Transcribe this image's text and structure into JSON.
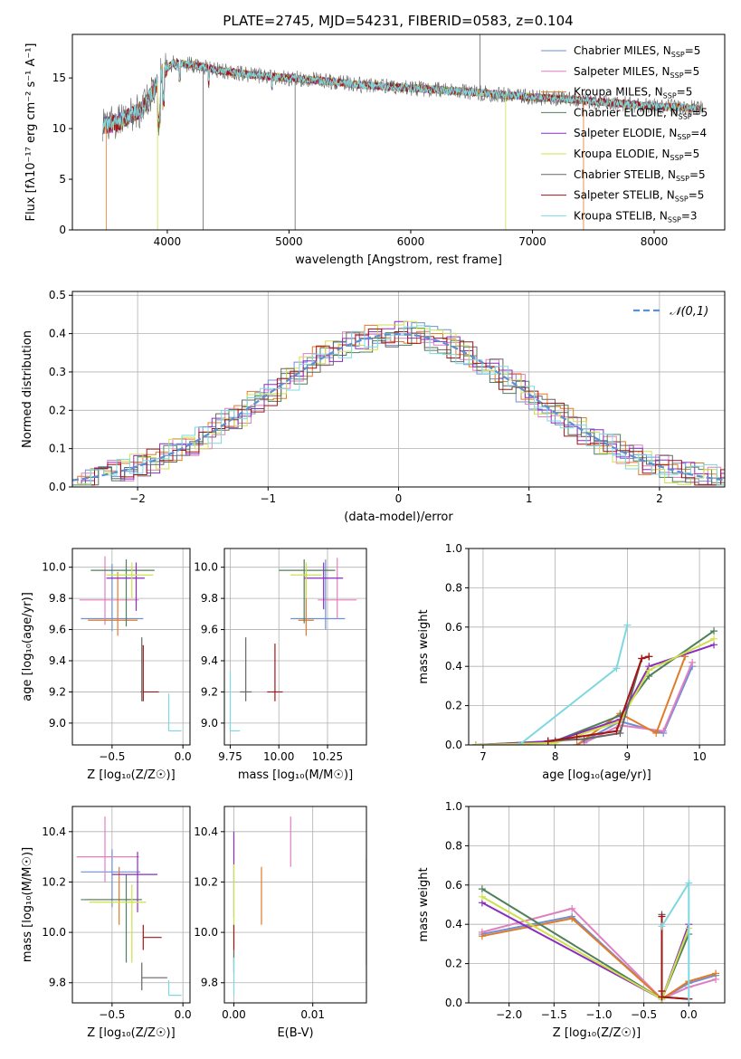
{
  "figure_title": "PLATE=2745, MJD=54231, FIBERID=0583, z=0.104",
  "colors": {
    "Chabrier MILES": "#6f8fd6",
    "Salpeter MILES": "#e07fbf",
    "Kroupa MILES": "#e07b28",
    "Chabrier ELODIE": "#4f7f5a",
    "Salpeter ELODIE": "#8a2cc0",
    "Kroupa ELODIE": "#cfe04a",
    "Chabrier STELIB": "#666666",
    "Salpeter STELIB": "#a31515",
    "Kroupa STELIB": "#7dd8e0"
  },
  "chart_data": [
    {
      "id": "spectrum",
      "type": "line",
      "xlabel": "wavelength [Angstrom, rest frame]",
      "ylabel": "Flux [fλ10⁻¹⁷ erg cm⁻² s⁻¹ A⁻¹]",
      "xlim": [
        3220,
        8580
      ],
      "ylim": [
        0,
        19.3
      ],
      "xticks": [
        4000,
        5000,
        6000,
        7000,
        8000
      ],
      "yticks": [
        0,
        5,
        10,
        15
      ],
      "grid": false,
      "legend": [
        "Chabrier MILES, N_SSP=5",
        "Salpeter MILES, N_SSP=5",
        "Kroupa MILES, N_SSP=5",
        "Chabrier ELODIE, N_SSP=5",
        "Salpeter ELODIE, N_SSP=4",
        "Kroupa ELODIE, N_SSP=5",
        "Chabrier STELIB, N_SSP=5",
        "Salpeter STELIB, N_SSP=5",
        "Kroupa STELIB, N_SSP=3"
      ],
      "legend_position": "top-right",
      "continuum": {
        "x": [
          3470,
          3600,
          3800,
          3900,
          3960,
          4050,
          4200,
          4400,
          4700,
          5000,
          5300,
          5600,
          6000,
          6400,
          6700,
          7000,
          7300,
          7600,
          8000,
          8400
        ],
        "y": [
          10.3,
          10.6,
          12.0,
          14.0,
          15.6,
          16.5,
          16.3,
          15.8,
          15.3,
          15.0,
          14.7,
          14.3,
          14.0,
          13.7,
          13.4,
          13.1,
          12.9,
          12.6,
          12.2,
          12.0
        ]
      }
    },
    {
      "id": "residuals",
      "type": "line",
      "xlabel": "(data-model)/error",
      "ylabel": "Normed distribution",
      "xlim": [
        -2.5,
        2.5
      ],
      "ylim": [
        0,
        0.51
      ],
      "xticks": [
        -2,
        -1,
        0,
        1,
        2
      ],
      "yticks": [
        0.0,
        0.1,
        0.2,
        0.3,
        0.4,
        0.5
      ],
      "grid": true,
      "legend": [
        "𝒩(0,1)"
      ],
      "legend_position": "top-right"
    },
    {
      "id": "age-vs-Z",
      "type": "scatter",
      "xlabel": "Z [log₁₀(Z/Z☉)]",
      "ylabel": "age  [log₁₀(age/yr)]",
      "xlim": [
        -0.78,
        0.05
      ],
      "ylim": [
        8.86,
        10.12
      ],
      "xticks": [
        -0.5,
        0.0
      ],
      "xtick_labels": [
        "−0.5",
        "0.0"
      ],
      "yticks": [
        9.0,
        9.2,
        9.4,
        9.6,
        9.8,
        10.0
      ],
      "grid": true,
      "series": [
        {
          "color": "#6f8fd6",
          "x": -0.5,
          "xerr": [
            0.22,
            0.22
          ],
          "y": 9.67,
          "yerr": [
            0.08,
            0.35
          ]
        },
        {
          "color": "#e07fbf",
          "x": -0.55,
          "xerr": [
            0.18,
            0.24
          ],
          "y": 9.79,
          "yerr": [
            0.16,
            0.28
          ]
        },
        {
          "color": "#e07b28",
          "x": -0.46,
          "xerr": [
            0.21,
            0.14
          ],
          "y": 9.66,
          "yerr": [
            0.1,
            0.31
          ]
        },
        {
          "color": "#4f7f5a",
          "x": -0.4,
          "xerr": [
            0.25,
            0.2
          ],
          "y": 9.98,
          "yerr": [
            0.36,
            0.07
          ]
        },
        {
          "color": "#8a2cc0",
          "x": -0.33,
          "xerr": [
            0.21,
            0.06
          ],
          "y": 9.93,
          "yerr": [
            0.21,
            0.1
          ]
        },
        {
          "color": "#cfe04a",
          "x": -0.36,
          "xerr": [
            0.18,
            0.15
          ],
          "y": 9.95,
          "yerr": [
            0.15,
            0.08
          ]
        },
        {
          "color": "#666666",
          "x": -0.29,
          "xerr": [
            0.01,
            0.0
          ],
          "y": 9.2,
          "yerr": [
            0.06,
            0.35
          ]
        },
        {
          "color": "#a31515",
          "x": -0.28,
          "xerr": [
            0.0,
            0.11
          ],
          "y": 9.2,
          "yerr": [
            0.06,
            0.3
          ]
        },
        {
          "color": "#7dd8e0",
          "x": -0.1,
          "xerr": [
            0.0,
            0.09
          ],
          "y": 8.95,
          "yerr": [
            0.0,
            0.24
          ]
        }
      ]
    },
    {
      "id": "age-vs-mass",
      "type": "scatter",
      "xlabel": "mass [log₁₀(M/M☉)]",
      "ylabel": "",
      "xlim": [
        9.72,
        10.45
      ],
      "ylim": [
        8.86,
        10.12
      ],
      "xticks": [
        9.75,
        10.0,
        10.25
      ],
      "yticks": [
        9.0,
        9.2,
        9.4,
        9.6,
        9.8,
        10.0
      ],
      "grid": true,
      "series": [
        {
          "color": "#6f8fd6",
          "x": 10.24,
          "xerr": [
            0.18,
            0.1
          ],
          "y": 9.67,
          "yerr": [
            0.07,
            0.38
          ]
        },
        {
          "color": "#e07fbf",
          "x": 10.3,
          "xerr": [
            0.1,
            0.1
          ],
          "y": 9.79,
          "yerr": [
            0.12,
            0.27
          ]
        },
        {
          "color": "#e07b28",
          "x": 10.14,
          "xerr": [
            0.04,
            0.04
          ],
          "y": 9.66,
          "yerr": [
            0.1,
            0.3
          ]
        },
        {
          "color": "#4f7f5a",
          "x": 10.13,
          "xerr": [
            0.13,
            0.16
          ],
          "y": 9.98,
          "yerr": [
            0.34,
            0.07
          ]
        },
        {
          "color": "#8a2cc0",
          "x": 10.23,
          "xerr": [
            0.1,
            0.1
          ],
          "y": 9.93,
          "yerr": [
            0.2,
            0.1
          ]
        },
        {
          "color": "#cfe04a",
          "x": 10.14,
          "xerr": [
            0.08,
            0.08
          ],
          "y": 9.95,
          "yerr": [
            0.15,
            0.08
          ]
        },
        {
          "color": "#666666",
          "x": 9.83,
          "xerr": [
            0.03,
            0.03
          ],
          "y": 9.2,
          "yerr": [
            0.06,
            0.35
          ]
        },
        {
          "color": "#a31515",
          "x": 9.98,
          "xerr": [
            0.04,
            0.04
          ],
          "y": 9.2,
          "yerr": [
            0.06,
            0.31
          ]
        },
        {
          "color": "#7dd8e0",
          "x": 9.75,
          "xerr": [
            0.0,
            0.05
          ],
          "y": 8.95,
          "yerr": [
            0.0,
            0.38
          ]
        }
      ]
    },
    {
      "id": "massweight-vs-age",
      "type": "line",
      "xlabel": "age  [log₁₀(age/yr)]",
      "ylabel": "mass weight",
      "xlim": [
        6.8,
        10.35
      ],
      "ylim": [
        0,
        1.0
      ],
      "xticks": [
        7,
        8,
        9,
        10
      ],
      "yticks": [
        0.0,
        0.2,
        0.4,
        0.6,
        0.8,
        1.0
      ],
      "grid": true,
      "series": [
        {
          "color": "#6f8fd6",
          "x": [
            8.3,
            8.9,
            9.5,
            9.9
          ],
          "y": [
            0.0,
            0.12,
            0.06,
            0.4
          ]
        },
        {
          "color": "#e07fbf",
          "x": [
            8.4,
            8.9,
            9.5,
            9.9
          ],
          "y": [
            0.01,
            0.1,
            0.07,
            0.42
          ]
        },
        {
          "color": "#e07b28",
          "x": [
            8.3,
            8.9,
            9.4,
            9.8
          ],
          "y": [
            0.0,
            0.16,
            0.06,
            0.45
          ]
        },
        {
          "color": "#4f7f5a",
          "x": [
            6.9,
            8.0,
            8.9,
            9.3,
            10.2
          ],
          "y": [
            0.0,
            0.02,
            0.15,
            0.35,
            0.58
          ]
        },
        {
          "color": "#8a2cc0",
          "x": [
            6.9,
            8.0,
            8.9,
            9.3,
            10.2
          ],
          "y": [
            0.0,
            0.02,
            0.13,
            0.4,
            0.51
          ]
        },
        {
          "color": "#cfe04a",
          "x": [
            6.9,
            8.0,
            8.9,
            9.3,
            10.2
          ],
          "y": [
            0.0,
            0.01,
            0.12,
            0.38,
            0.54
          ]
        },
        {
          "color": "#666666",
          "x": [
            7.9,
            8.4,
            8.9,
            9.2,
            9.3
          ],
          "y": [
            0.02,
            0.03,
            0.06,
            0.44,
            0.45
          ]
        },
        {
          "color": "#a31515",
          "x": [
            7.9,
            8.3,
            8.85,
            9.2,
            9.3
          ],
          "y": [
            0.02,
            0.04,
            0.07,
            0.44,
            0.45
          ]
        },
        {
          "color": "#7dd8e0",
          "x": [
            7.5,
            8.85,
            9.0
          ],
          "y": [
            0.0,
            0.39,
            0.61
          ]
        }
      ]
    },
    {
      "id": "mass-vs-Z",
      "type": "scatter",
      "xlabel": "Z [log₁₀(Z/Z☉)]",
      "ylabel": "mass [log₁₀(M/M☉)]",
      "xlim": [
        -0.78,
        0.05
      ],
      "ylim": [
        9.72,
        10.5
      ],
      "xticks": [
        -0.5,
        0.0
      ],
      "xtick_labels": [
        "−0.5",
        "0.0"
      ],
      "yticks": [
        9.8,
        10.0,
        10.2,
        10.4
      ],
      "grid": true,
      "series": [
        {
          "color": "#6f8fd6",
          "x": -0.5,
          "xerr": [
            0.22,
            0.2
          ],
          "y": 10.24,
          "yerr": [
            0.14,
            0.09
          ]
        },
        {
          "color": "#e07fbf",
          "x": -0.55,
          "xerr": [
            0.2,
            0.24
          ],
          "y": 10.3,
          "yerr": [
            0.1,
            0.16
          ]
        },
        {
          "color": "#e07b28",
          "x": -0.45,
          "xerr": [
            0.23,
            0.16
          ],
          "y": 10.13,
          "yerr": [
            0.1,
            0.13
          ]
        },
        {
          "color": "#4f7f5a",
          "x": -0.4,
          "xerr": [
            0.32,
            0.11
          ],
          "y": 10.13,
          "yerr": [
            0.25,
            0.1
          ]
        },
        {
          "color": "#8a2cc0",
          "x": -0.32,
          "xerr": [
            0.18,
            0.14
          ],
          "y": 10.23,
          "yerr": [
            0.15,
            0.09
          ]
        },
        {
          "color": "#cfe04a",
          "x": -0.36,
          "xerr": [
            0.3,
            0.1
          ],
          "y": 10.12,
          "yerr": [
            0.24,
            0.07
          ]
        },
        {
          "color": "#666666",
          "x": -0.29,
          "xerr": [
            0.0,
            0.18
          ],
          "y": 9.82,
          "yerr": [
            0.05,
            0.06
          ]
        },
        {
          "color": "#a31515",
          "x": -0.28,
          "xerr": [
            0.0,
            0.13
          ],
          "y": 9.98,
          "yerr": [
            0.05,
            0.05
          ]
        },
        {
          "color": "#7dd8e0",
          "x": -0.1,
          "xerr": [
            0.0,
            0.09
          ],
          "y": 9.75,
          "yerr": [
            0.0,
            0.06
          ]
        }
      ]
    },
    {
      "id": "mass-vs-EBV",
      "type": "scatter",
      "xlabel": "E(B-V)",
      "ylabel": "",
      "xlim": [
        -0.0012,
        0.0168
      ],
      "ylim": [
        9.72,
        10.5
      ],
      "xticks": [
        0.0,
        0.01
      ],
      "yticks": [
        9.8,
        10.0,
        10.2,
        10.4
      ],
      "grid": true,
      "series": [
        {
          "color": "#6f8fd6",
          "x": 0.0,
          "y": 10.24,
          "yerr": [
            0.18,
            0.02
          ]
        },
        {
          "color": "#e07fbf",
          "x": 0.0072,
          "y": 10.36,
          "yerr": [
            0.1,
            0.1
          ]
        },
        {
          "color": "#e07b28",
          "x": 0.0035,
          "y": 10.14,
          "yerr": [
            0.11,
            0.12
          ]
        },
        {
          "color": "#4f7f5a",
          "x": 0.0168,
          "y": 10.08,
          "yerr": [
            0.21,
            0.21
          ]
        },
        {
          "color": "#8a2cc0",
          "x": 0.0,
          "y": 10.33,
          "yerr": [
            0.07,
            0.07
          ]
        },
        {
          "color": "#cfe04a",
          "x": 0.0,
          "y": 10.09,
          "yerr": [
            0.21,
            0.18
          ]
        },
        {
          "color": "#666666",
          "x": 0.0,
          "y": 9.88,
          "yerr": [
            0.04,
            0.05
          ]
        },
        {
          "color": "#a31515",
          "x": 0.0,
          "y": 9.98,
          "yerr": [
            0.05,
            0.05
          ]
        },
        {
          "color": "#7dd8e0",
          "x": 0.0,
          "y": 9.75,
          "yerr": [
            0.0,
            0.15
          ]
        }
      ]
    },
    {
      "id": "massweight-vs-Z",
      "type": "line",
      "xlabel": "Z [log₁₀(Z/Z☉)]",
      "ylabel": "mass weight",
      "xlim": [
        -2.45,
        0.4
      ],
      "ylim": [
        0,
        1.0
      ],
      "xticks": [
        -2.0,
        -1.5,
        -1.0,
        -0.5,
        0.0
      ],
      "xtick_labels": [
        "−2.0",
        "−1.5",
        "−1.0",
        "−0.5",
        "0.0"
      ],
      "yticks": [
        0.0,
        0.2,
        0.4,
        0.6,
        0.8,
        1.0
      ],
      "grid": true,
      "series": [
        {
          "color": "#6f8fd6",
          "x": [
            -2.3,
            -1.3,
            -0.3,
            0.0,
            0.3
          ],
          "y": [
            0.35,
            0.44,
            0.02,
            0.1,
            0.14
          ]
        },
        {
          "color": "#e07fbf",
          "x": [
            -2.3,
            -1.3,
            -0.3,
            0.0,
            0.3
          ],
          "y": [
            0.36,
            0.48,
            0.02,
            0.08,
            0.12
          ]
        },
        {
          "color": "#e07b28",
          "x": [
            -2.3,
            -1.3,
            -0.3,
            0.0,
            0.3
          ],
          "y": [
            0.34,
            0.43,
            0.02,
            0.11,
            0.15
          ]
        },
        {
          "color": "#4f7f5a",
          "x": [
            -2.3,
            -0.3,
            0.0
          ],
          "y": [
            0.58,
            0.02,
            0.35
          ]
        },
        {
          "color": "#8a2cc0",
          "x": [
            -2.3,
            -0.3,
            0.0
          ],
          "y": [
            0.51,
            0.02,
            0.4
          ]
        },
        {
          "color": "#cfe04a",
          "x": [
            -2.3,
            -0.3,
            0.0
          ],
          "y": [
            0.54,
            0.02,
            0.38
          ]
        },
        {
          "color": "#666666",
          "x": [
            -0.3,
            -0.3,
            -0.3,
            0.0
          ],
          "y": [
            0.45,
            0.06,
            0.03,
            0.02
          ]
        },
        {
          "color": "#a31515",
          "x": [
            -0.3,
            -0.3,
            -0.3,
            0.0
          ],
          "y": [
            0.44,
            0.06,
            0.03,
            0.02
          ]
        },
        {
          "color": "#7dd8e0",
          "x": [
            -0.3,
            0.0,
            0.0
          ],
          "y": [
            0.39,
            0.61,
            0.0
          ]
        }
      ]
    }
  ]
}
